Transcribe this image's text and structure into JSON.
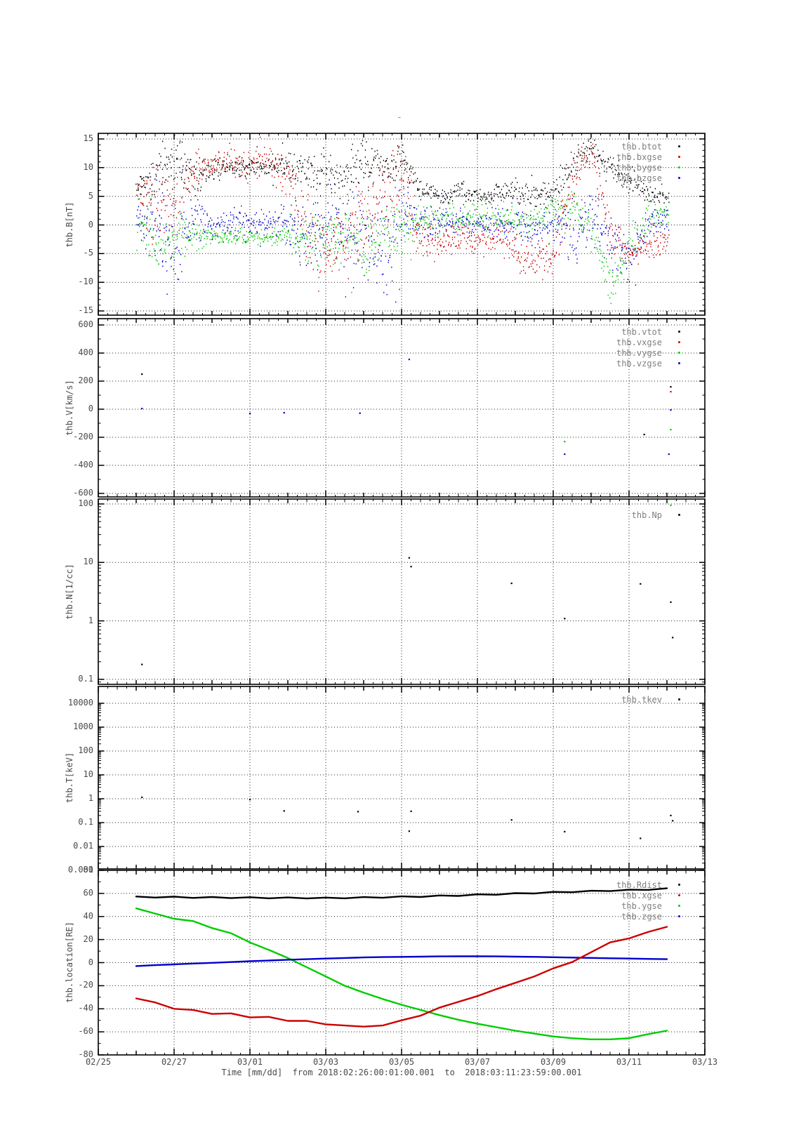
{
  "figure": {
    "top_mark": "-",
    "background": "#ffffff"
  },
  "colors": {
    "black": "#000000",
    "red": "#cc0000",
    "green": "#00cc00",
    "blue": "#0000cc",
    "legend_text": "#7f7f7f",
    "tick_text": "#4a4a4a"
  },
  "x_axis": {
    "title": "Time [mm/dd]  from 2018:02:26:00:01:00.001  to  2018:03:11:23:59:00.001",
    "tick_labels": [
      "02/25",
      "02/27",
      "03/01",
      "03/03",
      "03/05",
      "03/07",
      "03/09",
      "03/11",
      "03/13"
    ],
    "tick_days": [
      0,
      2,
      4,
      6,
      8,
      10,
      12,
      14,
      16
    ]
  },
  "chart_data": [
    {
      "id": "b-field",
      "type": "noisy-scatter",
      "scale": "linear",
      "ylabel": "thb.B[nT]",
      "ylim": [
        -15,
        15
      ],
      "ytick_labels": [
        "15",
        "10",
        "5",
        "0",
        "-5",
        "-10",
        "-15"
      ],
      "ytick_values": [
        15,
        10,
        5,
        0,
        -5,
        -10,
        -15
      ],
      "legend": [
        {
          "label": "thb.btot",
          "color": "#000000"
        },
        {
          "label": "thb.bxgse",
          "color": "#cc0000"
        },
        {
          "label": "thb.bygse",
          "color": "#00cc00"
        },
        {
          "label": "thb.bzgse",
          "color": "#0000cc"
        }
      ],
      "x_start": 1.0,
      "x_step": 0.5,
      "x_end": 15.05,
      "series": [
        {
          "name": "thb.bygse",
          "color": "#00cc00",
          "center": [
            0,
            -3,
            -2,
            -2,
            -2,
            -2,
            -2,
            -2,
            -2,
            -3,
            -2,
            -3,
            -3,
            -2,
            0,
            1,
            1,
            1,
            2,
            1,
            1,
            1,
            2,
            3,
            0,
            -11,
            -4,
            1,
            2
          ],
          "amp": [
            3,
            4,
            4,
            2,
            1,
            1,
            1,
            1,
            2,
            3,
            4,
            4,
            4,
            4,
            4,
            2,
            2,
            2,
            2,
            2,
            2,
            2,
            2,
            2,
            3,
            3,
            3,
            2,
            1.5
          ]
        },
        {
          "name": "thb.bzgse",
          "color": "#0000cc",
          "center": [
            2,
            0,
            -4,
            1,
            0,
            0.5,
            0,
            0.5,
            0,
            -2,
            0,
            -1,
            -2,
            -4,
            2,
            1,
            0,
            1,
            0,
            0.5,
            0,
            -1,
            0,
            -2,
            1,
            -2,
            -6,
            0,
            1
          ],
          "amp": [
            2,
            6,
            7,
            3,
            2,
            2,
            2,
            2,
            3,
            5,
            4,
            5,
            6,
            6,
            6,
            3,
            2,
            2,
            2,
            2,
            2,
            2,
            2,
            4,
            4,
            4,
            3,
            2,
            1.5
          ]
        },
        {
          "name": "thb.bxgse",
          "color": "#cc0000",
          "center": [
            6,
            2,
            5,
            10,
            10,
            11,
            10,
            11,
            8,
            0,
            -5,
            -3,
            2,
            5,
            8,
            -3,
            -3,
            -2,
            -3,
            -2,
            -4,
            -6,
            -5,
            8,
            13,
            -2,
            -5,
            -3,
            -3
          ],
          "amp": [
            2,
            6,
            6,
            3,
            2,
            2,
            2,
            2,
            4,
            6,
            5,
            6,
            6,
            6,
            5,
            3,
            2,
            2,
            2,
            2,
            3,
            3,
            3,
            4,
            1.5,
            4,
            2,
            2,
            1.5
          ]
        },
        {
          "name": "thb.btot",
          "color": "#000000",
          "center": [
            7,
            9,
            12,
            9,
            10,
            10.5,
            10,
            10.5,
            10,
            9.5,
            9.5,
            8.5,
            11,
            10,
            12,
            6,
            5,
            6,
            5,
            5.5,
            6,
            5,
            6,
            11,
            14,
            10,
            8,
            5.5,
            5
          ],
          "amp": [
            1.5,
            4,
            3.5,
            3,
            1.5,
            1.5,
            1.5,
            1.5,
            2,
            3,
            3,
            3.5,
            3.5,
            3,
            2.5,
            1.5,
            1,
            1.5,
            1,
            1.5,
            1.5,
            1.5,
            1.5,
            2.5,
            1.2,
            1.5,
            2,
            1,
            1
          ]
        }
      ]
    },
    {
      "id": "velocity",
      "type": "sparse-scatter",
      "scale": "linear",
      "ylabel": "thb.V[km/s]",
      "ylim": [
        -600,
        600
      ],
      "ytick_labels": [
        "600",
        "400",
        "200",
        "0",
        "-200",
        "-400",
        "-600"
      ],
      "ytick_values": [
        600,
        400,
        200,
        0,
        -200,
        -400,
        -600
      ],
      "legend": [
        {
          "label": "thb.vtot",
          "color": "#000000"
        },
        {
          "label": "thb.vxgse",
          "color": "#cc0000"
        },
        {
          "label": "thb.vygse",
          "color": "#00cc00"
        },
        {
          "label": "thb.vzgse",
          "color": "#0000cc"
        }
      ],
      "points": [
        {
          "d": 1.15,
          "v": 250,
          "color": "#000000"
        },
        {
          "d": 1.15,
          "v": 5,
          "color": "#0000cc"
        },
        {
          "d": 8.2,
          "v": 355,
          "color": "#0000cc"
        },
        {
          "d": 4.0,
          "v": -30,
          "color": "#0000cc"
        },
        {
          "d": 4.9,
          "v": -25,
          "color": "#0000cc"
        },
        {
          "d": 6.9,
          "v": -28,
          "color": "#0000cc"
        },
        {
          "d": 12.3,
          "v": -230,
          "color": "#00cc00"
        },
        {
          "d": 12.3,
          "v": -320,
          "color": "#0000cc"
        },
        {
          "d": 14.4,
          "v": -180,
          "color": "#000000"
        },
        {
          "d": 15.1,
          "v": 160,
          "color": "#000000"
        },
        {
          "d": 15.1,
          "v": 125,
          "color": "#cc0000"
        },
        {
          "d": 15.1,
          "v": -5,
          "color": "#0000cc"
        },
        {
          "d": 15.1,
          "v": -145,
          "color": "#00cc00"
        },
        {
          "d": 15.05,
          "v": -320,
          "color": "#0000cc"
        }
      ]
    },
    {
      "id": "density",
      "type": "sparse-scatter",
      "scale": "log",
      "ylabel": "thb.N[1/cc]",
      "ylim": [
        0.1,
        100
      ],
      "ytick_labels": [
        "100",
        "10",
        "1",
        "0.1"
      ],
      "ytick_values": [
        100,
        10,
        1,
        0.1
      ],
      "legend": [
        {
          "label": "thb.Np",
          "color": "#000000"
        }
      ],
      "points": [
        {
          "d": 1.15,
          "v": 0.18,
          "color": "#000000"
        },
        {
          "d": 8.2,
          "v": 12,
          "color": "#000000"
        },
        {
          "d": 8.25,
          "v": 8.5,
          "color": "#000000"
        },
        {
          "d": 10.9,
          "v": 4.4,
          "color": "#000000"
        },
        {
          "d": 12.3,
          "v": 1.1,
          "color": "#000000"
        },
        {
          "d": 14.3,
          "v": 4.3,
          "color": "#000000"
        },
        {
          "d": 15.1,
          "v": 2.1,
          "color": "#000000"
        },
        {
          "d": 15.15,
          "v": 0.52,
          "color": "#000000"
        },
        {
          "d": 15.1,
          "v": 95,
          "color": "#00cc00"
        }
      ]
    },
    {
      "id": "temperature",
      "type": "sparse-scatter",
      "scale": "log",
      "ylabel": "thb.T[keV]",
      "ylim": [
        0.001,
        10000
      ],
      "ytick_labels": [
        "10000",
        "1000",
        "100",
        "10",
        "1",
        "0.1",
        "0.01",
        "0.001"
      ],
      "ytick_values": [
        10000,
        1000,
        100,
        10,
        1,
        0.1,
        0.01,
        0.001
      ],
      "legend": [
        {
          "label": "thb.tkev",
          "color": "#000000"
        }
      ],
      "points": [
        {
          "d": 1.15,
          "v": 1.15,
          "color": "#000000"
        },
        {
          "d": 4.0,
          "v": 0.93,
          "color": "#000000"
        },
        {
          "d": 4.9,
          "v": 0.31,
          "color": "#000000"
        },
        {
          "d": 6.85,
          "v": 0.29,
          "color": "#000000"
        },
        {
          "d": 8.25,
          "v": 0.3,
          "color": "#000000"
        },
        {
          "d": 8.2,
          "v": 0.044,
          "color": "#000000"
        },
        {
          "d": 10.9,
          "v": 0.13,
          "color": "#000000"
        },
        {
          "d": 12.3,
          "v": 0.042,
          "color": "#000000"
        },
        {
          "d": 14.3,
          "v": 0.022,
          "color": "#000000"
        },
        {
          "d": 15.1,
          "v": 0.2,
          "color": "#000000"
        },
        {
          "d": 15.15,
          "v": 0.12,
          "color": "#000000"
        }
      ]
    },
    {
      "id": "location",
      "type": "line",
      "scale": "linear",
      "ylabel": "thb.location[RE]",
      "ylim": [
        -80,
        80
      ],
      "ytick_labels": [
        "80",
        "60",
        "40",
        "20",
        "0",
        "-20",
        "-40",
        "-60",
        "-80"
      ],
      "ytick_values": [
        80,
        60,
        40,
        20,
        0,
        -20,
        -40,
        -60,
        -80
      ],
      "legend": [
        {
          "label": "thb.Rdist",
          "color": "#000000"
        },
        {
          "label": "thb.xgse",
          "color": "#cc0000"
        },
        {
          "label": "thb.ygse",
          "color": "#00cc00"
        },
        {
          "label": "thb.zgse",
          "color": "#0000cc"
        }
      ],
      "x_start": 1.0,
      "x_step": 0.5,
      "series": [
        {
          "name": "thb.ygse",
          "color": "#00cc00",
          "values": [
            47,
            42.5,
            38,
            36,
            30,
            25.5,
            17.5,
            11,
            4,
            -4,
            -12,
            -20,
            -26,
            -31.5,
            -36.5,
            -41,
            -45.5,
            -49.5,
            -53,
            -56,
            -59,
            -61.5,
            -64,
            -65.5,
            -66.5,
            -66.5,
            -65.5,
            -62,
            -59
          ]
        },
        {
          "name": "thb.zgse",
          "color": "#0000cc",
          "values": [
            -3,
            -2.2,
            -1.5,
            -0.8,
            -0.2,
            0.5,
            1.2,
            1.8,
            2.5,
            3,
            3.5,
            4,
            4.5,
            4.8,
            5,
            5.2,
            5.4,
            5.5,
            5.5,
            5.4,
            5.2,
            5,
            4.7,
            4.4,
            4.1,
            3.8,
            3.5,
            3.2,
            3
          ]
        },
        {
          "name": "thb.xgse",
          "color": "#cc0000",
          "values": [
            -31,
            -34.5,
            -40,
            -41,
            -44.5,
            -44,
            -47.5,
            -47,
            -50.5,
            -50.5,
            -53.5,
            -54.5,
            -55.5,
            -54.5,
            -50,
            -46,
            -39,
            -34,
            -29,
            -23,
            -17.5,
            -12,
            -5,
            0.5,
            9,
            17.5,
            21,
            26.5,
            31
          ]
        },
        {
          "name": "thb.Rdist",
          "color": "#000000",
          "values": [
            57.3,
            56.4,
            57.2,
            56.1,
            56.9,
            55.9,
            56.7,
            55.7,
            56.5,
            55.6,
            56.4,
            55.7,
            56.8,
            56.2,
            57.4,
            56.9,
            58.2,
            57.8,
            59.2,
            58.8,
            60.2,
            59.9,
            61.3,
            61,
            62.3,
            62,
            63.2,
            63,
            64.4
          ]
        }
      ]
    }
  ]
}
